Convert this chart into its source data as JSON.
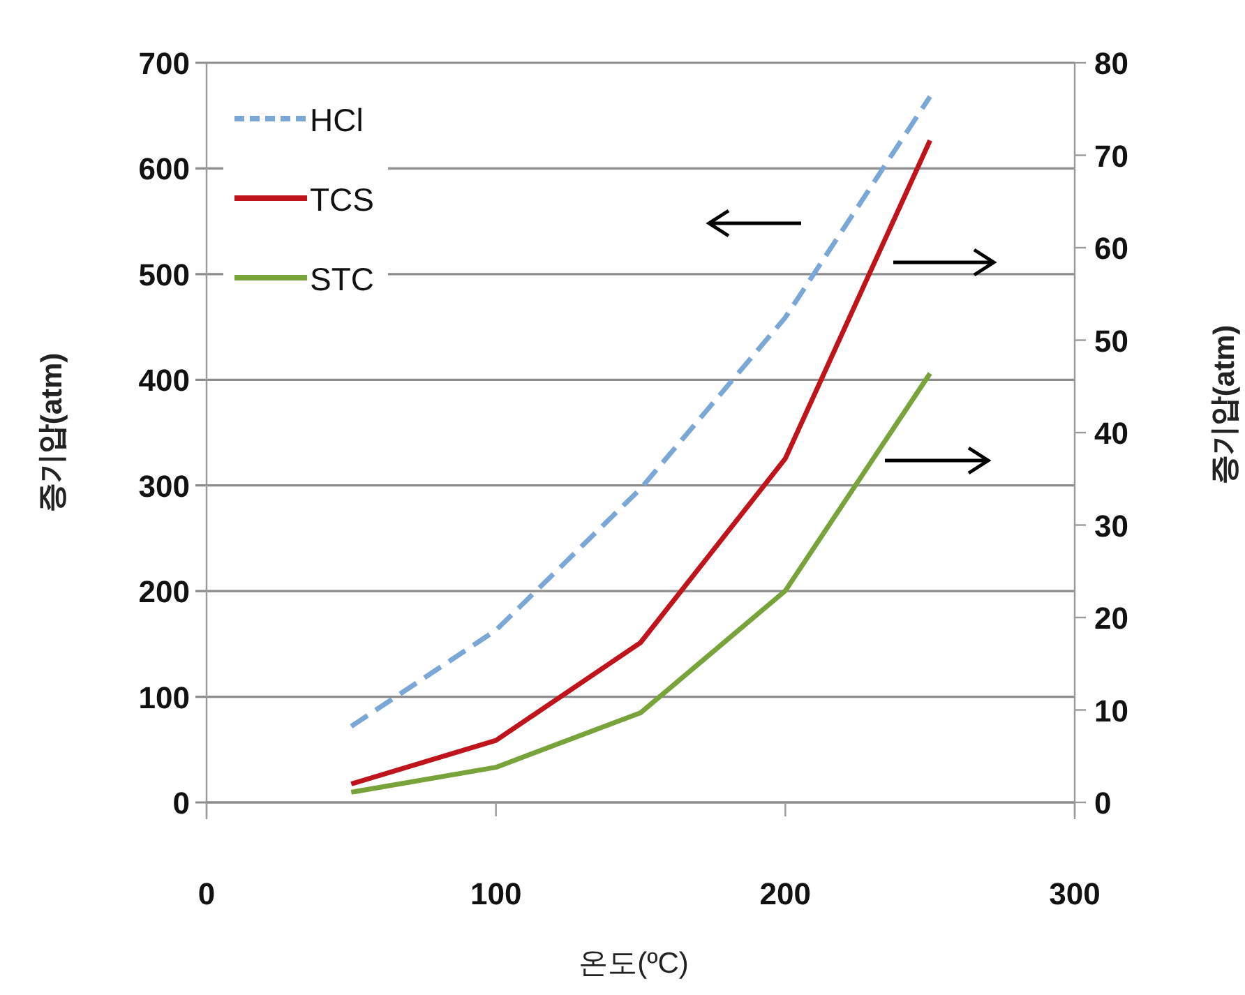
{
  "chart_data": {
    "type": "line",
    "xlabel": "온도(ºC)",
    "ylabel": "증기압(atm)",
    "y2label": "증기압(atm)",
    "xlim": [
      0,
      300
    ],
    "xticks": [
      0,
      100,
      200,
      300
    ],
    "ylim": [
      0,
      700
    ],
    "yticks": [
      0,
      100,
      200,
      300,
      400,
      500,
      600,
      700
    ],
    "y2lim": [
      0,
      80
    ],
    "y2ticks": [
      0,
      10,
      20,
      30,
      40,
      50,
      60,
      70,
      80
    ],
    "grid": "y",
    "legend": "top left",
    "series": [
      {
        "name": "HCl",
        "color": "#7ba7d6",
        "line_style": "dashed",
        "axis": "y",
        "x": [
          50,
          100,
          150,
          200,
          250
        ],
        "values": [
          72,
          163,
          297,
          459,
          668
        ]
      },
      {
        "name": "TCS",
        "color": "#c0141c",
        "line_style": "solid",
        "axis": "y2",
        "x": [
          50,
          100,
          150,
          200,
          250
        ],
        "values": [
          2,
          6.7,
          17.3,
          37.2,
          71.6
        ]
      },
      {
        "name": "STC",
        "color": "#77a33a",
        "line_style": "solid",
        "axis": "y2",
        "x": [
          50,
          100,
          150,
          200,
          250
        ],
        "values": [
          1.1,
          3.8,
          9.7,
          22.9,
          46.4
        ]
      }
    ]
  }
}
